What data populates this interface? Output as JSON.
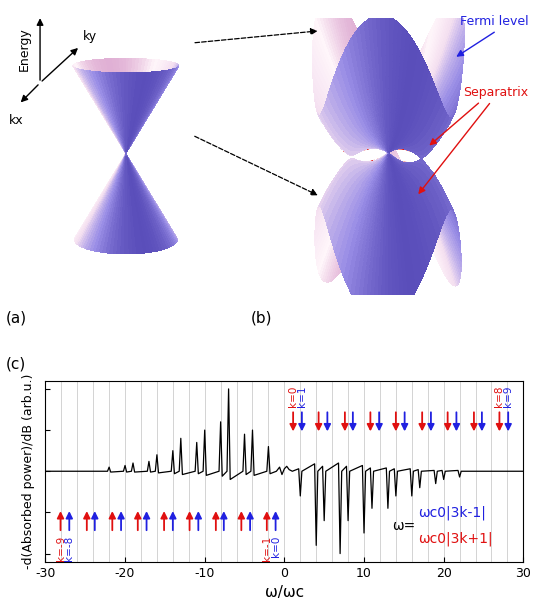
{
  "diagram": {
    "panels": [
      {
        "label": "(a)",
        "axes": [
          "Energy",
          "ky",
          "kx"
        ]
      },
      {
        "label": "(b)",
        "annotations": [
          {
            "text": "Fermi level",
            "color": "#2020e0"
          },
          {
            "text": "Separatrix",
            "color": "#e01010"
          }
        ]
      }
    ]
  },
  "chart_data": {
    "type": "line",
    "label": "(c)",
    "x_label": "ω/ωc",
    "y_label": "-d(Absorbed power)/dB (arb.u.)",
    "xlim": [
      -30,
      30
    ],
    "xticks": [
      -30,
      -20,
      -10,
      0,
      10,
      20,
      30
    ],
    "ylim": [
      -1.1,
      1.1
    ],
    "yticks": [
      -1,
      -0.5,
      0,
      0.5,
      1
    ],
    "tick_labels": "x",
    "grid": false,
    "x_lines": [
      -28,
      -26,
      -24,
      -22,
      -20,
      -18,
      -16,
      -14,
      -12,
      -10,
      -8,
      -6,
      -4,
      -2,
      0,
      2,
      4,
      6,
      8,
      10,
      12,
      14,
      16,
      18,
      20,
      22,
      24,
      26,
      28
    ],
    "color": "black",
    "x": [
      -30,
      -22.2,
      -22,
      -21.8,
      -20.2,
      -20,
      -19.8,
      -19.2,
      -19,
      -18.8,
      -17.2,
      -17,
      -16.8,
      -16.2,
      -16,
      -15.8,
      -14.2,
      -14,
      -13.8,
      -13.2,
      -13,
      -12.8,
      -11.2,
      -11,
      -10.8,
      -10.2,
      -10,
      -9.8,
      -8.2,
      -8,
      -7.8,
      -7.2,
      -7,
      -6.8,
      -5.2,
      -5,
      -4.8,
      -4.2,
      -4,
      -3.8,
      -2.2,
      -2,
      -1.8,
      -1.0,
      -0.6,
      -0.3,
      0,
      0.3,
      0.6,
      1.0,
      1.8,
      2,
      2.2,
      3.8,
      4,
      4.2,
      4.8,
      5,
      5.2,
      6.8,
      7,
      7.2,
      7.8,
      8,
      8.2,
      9.8,
      10,
      10.2,
      10.8,
      11,
      11.2,
      12.8,
      13,
      13.2,
      13.8,
      14,
      14.2,
      15.8,
      16,
      16.2,
      16.8,
      17,
      17.2,
      18.8,
      19,
      19.2,
      19.8,
      20,
      20.2,
      21.8,
      22,
      22.2,
      30
    ],
    "values": [
      0,
      0,
      0.05,
      -0.01,
      0,
      0.07,
      -0.01,
      0,
      0.1,
      -0.01,
      0,
      0.12,
      -0.01,
      0,
      0.2,
      -0.02,
      0,
      0.25,
      -0.03,
      0,
      0.4,
      -0.04,
      0,
      0.35,
      -0.03,
      0,
      0.5,
      -0.05,
      0,
      0.6,
      -0.06,
      0,
      1.0,
      -0.1,
      0,
      0.45,
      -0.04,
      0,
      0.5,
      -0.05,
      0,
      0.3,
      -0.03,
      0,
      0.05,
      -0.04,
      0.03,
      0.06,
      0.02,
      0.0,
      0.03,
      -0.3,
      0,
      0.09,
      -0.9,
      0,
      0.06,
      -0.6,
      0,
      0.1,
      -1.0,
      0,
      0.06,
      -0.6,
      0,
      0.07,
      -0.75,
      0,
      0.04,
      -0.45,
      0,
      0.04,
      -0.45,
      0,
      0.03,
      -0.3,
      0,
      0.03,
      -0.3,
      0,
      0.02,
      -0.2,
      0,
      0.01,
      -0.15,
      0,
      0.01,
      -0.1,
      0,
      0.01,
      -0.07,
      0,
      0
    ],
    "formula_prefix": "ω=",
    "arrow_sets": [
      {
        "formula": "ωc0|3k-1|",
        "color": "#2020e0",
        "x": [
          2.2,
          5.4,
          8.6,
          11.9,
          15.1,
          18.4,
          21.6,
          24.8,
          28.1,
          -1.1,
          -4.3,
          -7.6,
          -10.8,
          -14.0,
          -17.3,
          -20.5,
          -23.8,
          -27.0
        ]
      },
      {
        "formula": "ωc0|3k+1|",
        "color": "#e01010",
        "x": [
          1.1,
          4.3,
          7.6,
          10.8,
          14.0,
          17.3,
          20.5,
          23.8,
          27.0,
          -2.2,
          -5.4,
          -8.6,
          -11.9,
          -15.1,
          -18.4,
          -21.6,
          -24.8,
          -28.1
        ]
      }
    ],
    "arrow_labels": [
      {
        "text": "k=0",
        "x": 1.1,
        "color": "#e01010"
      },
      {
        "text": "k=1",
        "x": 2.2,
        "color": "#2020e0"
      },
      {
        "text": "k=8",
        "x": 27.0,
        "color": "#e01010"
      },
      {
        "text": "k=9",
        "x": 28.1,
        "color": "#2020e0"
      },
      {
        "text": "k=-9",
        "x": -28.1,
        "color": "#e01010"
      },
      {
        "text": "k=-8",
        "x": -27.0,
        "color": "#2020e0"
      },
      {
        "text": "k=-1",
        "x": -2.2,
        "color": "#e01010"
      },
      {
        "text": "k=0",
        "x": -1.1,
        "color": "#2020e0"
      }
    ]
  }
}
